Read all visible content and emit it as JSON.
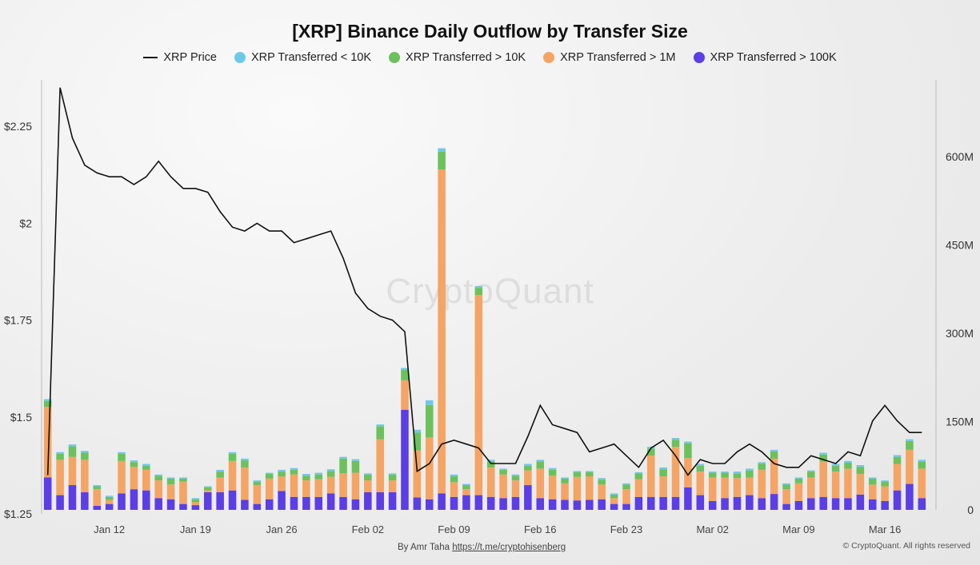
{
  "title": "[XRP] Binance Daily Outflow by Transfer Size",
  "watermark": "CryptoQuant",
  "credit_prefix": "By Amr Taha",
  "credit_link": "https://t.me/cryptohisenberg",
  "copyright": "© CryptoQuant. All rights reserved",
  "legend": [
    {
      "label": "XRP Price",
      "kind": "line",
      "color": "#111111"
    },
    {
      "label": "XRP Transferred < 10K",
      "kind": "dot",
      "color": "#6ec9e8"
    },
    {
      "label": "XRP Transferred > 10K",
      "kind": "dot",
      "color": "#6cc15b"
    },
    {
      "label": "XRP Transferred > 1M",
      "kind": "dot",
      "color": "#f5a463"
    },
    {
      "label": "XRP Transferred > 100K",
      "kind": "dot",
      "color": "#5b3ee6"
    }
  ],
  "chart_data": {
    "type": "bar",
    "title": "[XRP] Binance Daily Outflow by Transfer Size",
    "left_axis": {
      "ticks": [
        1.25,
        1.5,
        1.75,
        2,
        2.25
      ],
      "tick_labels": [
        "$1.25",
        "$1.5",
        "$1.75",
        "$2",
        "$2.25"
      ],
      "range": [
        1.25,
        2.37
      ]
    },
    "right_axis": {
      "ticks": [
        0,
        150,
        300,
        450,
        600
      ],
      "tick_labels": [
        "0",
        "150M",
        "300M",
        "450M",
        "600M"
      ],
      "range": [
        0,
        730
      ]
    },
    "x_ticks": [
      {
        "label": "Jan 12",
        "day": 5
      },
      {
        "label": "Jan 19",
        "day": 12
      },
      {
        "label": "Jan 26",
        "day": 19
      },
      {
        "label": "Feb 02",
        "day": 26
      },
      {
        "label": "Feb 09",
        "day": 33
      },
      {
        "label": "Feb 16",
        "day": 40
      },
      {
        "label": "Feb 23",
        "day": 47
      },
      {
        "label": "Mar 02",
        "day": 54
      },
      {
        "label": "Mar 09",
        "day": 61
      },
      {
        "label": "Mar 16",
        "day": 68
      }
    ],
    "price": [
      1.35,
      2.35,
      2.22,
      2.15,
      2.13,
      2.12,
      2.12,
      2.1,
      2.12,
      2.16,
      2.12,
      2.09,
      2.09,
      2.08,
      2.03,
      1.99,
      1.98,
      2.0,
      1.98,
      1.98,
      1.95,
      1.96,
      1.97,
      1.98,
      1.91,
      1.82,
      1.78,
      1.76,
      1.75,
      1.72,
      1.36,
      1.38,
      1.43,
      1.44,
      1.43,
      1.42,
      1.38,
      1.38,
      1.38,
      1.45,
      1.53,
      1.48,
      1.47,
      1.46,
      1.41,
      1.42,
      1.43,
      1.4,
      1.37,
      1.42,
      1.44,
      1.4,
      1.35,
      1.39,
      1.38,
      1.38,
      1.41,
      1.43,
      1.41,
      1.38,
      1.37,
      1.37,
      1.4,
      1.39,
      1.38,
      1.41,
      1.4,
      1.49,
      1.53,
      1.49,
      1.46,
      1.46
    ],
    "series": [
      {
        "name": "XRP Transferred > 100K",
        "color": "#5b3ee6",
        "values": [
          55,
          25,
          42,
          30,
          7,
          10,
          28,
          35,
          33,
          20,
          18,
          10,
          8,
          30,
          30,
          33,
          17,
          10,
          18,
          32,
          22,
          22,
          22,
          28,
          22,
          18,
          30,
          30,
          30,
          170,
          21,
          18,
          28,
          22,
          25,
          25,
          22,
          20,
          22,
          42,
          20,
          18,
          17,
          16,
          17,
          18,
          10,
          10,
          22,
          22,
          22,
          22,
          38,
          25,
          15,
          20,
          22,
          25,
          20,
          27,
          10,
          15,
          20,
          22,
          20,
          20,
          26,
          18,
          15,
          33,
          44,
          20,
          18,
          5
        ]
      },
      {
        "name": "XRP Transferred > 1M",
        "color": "#f5a463",
        "values": [
          120,
          60,
          48,
          55,
          28,
          7,
          55,
          38,
          35,
          30,
          25,
          38,
          5,
          3,
          25,
          50,
          55,
          32,
          35,
          25,
          38,
          28,
          30,
          28,
          40,
          45,
          20,
          90,
          20,
          50,
          80,
          105,
          550,
          25,
          10,
          340,
          50,
          40,
          28,
          25,
          50,
          40,
          28,
          40,
          40,
          25,
          10,
          25,
          30,
          70,
          35,
          85,
          50,
          40,
          40,
          35,
          32,
          30,
          48,
          60,
          25,
          30,
          35,
          60,
          45,
          50,
          35,
          25,
          25,
          45,
          58,
          50,
          30,
          0
        ]
      },
      {
        "name": "XRP Transferred > 10K",
        "color": "#6cc15b",
        "values": [
          10,
          10,
          18,
          12,
          5,
          5,
          12,
          8,
          7,
          8,
          10,
          5,
          5,
          5,
          10,
          12,
          12,
          6,
          8,
          8,
          8,
          8,
          8,
          10,
          25,
          20,
          10,
          22,
          10,
          18,
          30,
          55,
          30,
          10,
          7,
          12,
          10,
          8,
          8,
          8,
          12,
          10,
          8,
          8,
          7,
          8,
          6,
          8,
          10,
          12,
          12,
          12,
          25,
          10,
          8,
          8,
          8,
          12,
          10,
          12,
          8,
          8,
          10,
          12,
          10,
          10,
          12,
          10,
          8,
          12,
          15,
          12,
          10,
          1
        ]
      },
      {
        "name": "XRP Transferred < 10K",
        "color": "#6ec9e8",
        "values": [
          3,
          3,
          3,
          3,
          2,
          2,
          3,
          3,
          3,
          2,
          2,
          2,
          2,
          2,
          3,
          3,
          3,
          2,
          2,
          3,
          3,
          3,
          3,
          3,
          3,
          3,
          2,
          3,
          2,
          3,
          5,
          8,
          6,
          3,
          2,
          3,
          3,
          2,
          2,
          3,
          3,
          3,
          2,
          2,
          2,
          3,
          2,
          2,
          2,
          3,
          3,
          3,
          3,
          3,
          2,
          2,
          3,
          3,
          3,
          3,
          2,
          2,
          2,
          3,
          3,
          3,
          3,
          2,
          2,
          3,
          3,
          3,
          3,
          0
        ]
      }
    ]
  }
}
